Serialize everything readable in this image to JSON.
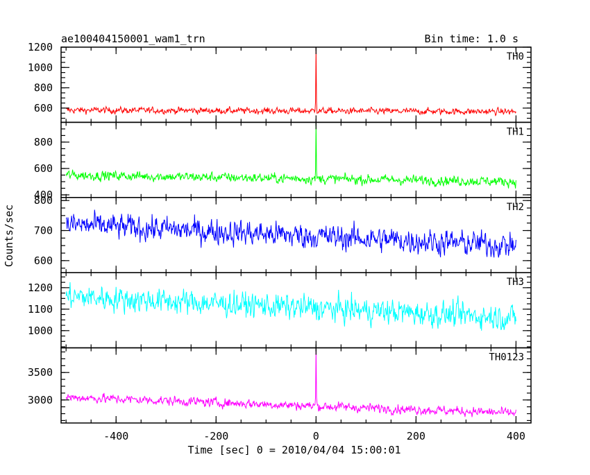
{
  "chart_data": {
    "type": "line",
    "title": "ae100404150001_wam1_trn",
    "bin_time_label": "Bin time: 1.0 s",
    "xlabel": "Time [sec] 0 = 2010/04/04 15:00:01",
    "ylabel": "Counts/sec",
    "xlim": [
      -510,
      430
    ],
    "x_ticks": [
      -400,
      -200,
      0,
      200,
      400
    ],
    "grid": false,
    "panels": [
      {
        "name": "TH0",
        "color": "#ff0000",
        "ylim": [
          460,
          1200
        ],
        "y_ticks": [
          600,
          800,
          1000,
          1200
        ],
        "series_start": [
          -500,
          580
        ],
        "series_end": [
          400,
          565
        ],
        "noise_amplitude": 30,
        "spikes": [
          {
            "x": 0,
            "y": 1200
          }
        ]
      },
      {
        "name": "TH1",
        "color": "#00ff00",
        "ylim": [
          380,
          950
        ],
        "y_ticks": [
          400,
          600,
          800
        ],
        "series_start": [
          -500,
          550
        ],
        "series_end": [
          400,
          500
        ],
        "noise_amplitude": 35,
        "spikes": [
          {
            "x": 0,
            "y": 950
          }
        ]
      },
      {
        "name": "TH2",
        "color": "#0000ff",
        "ylim": [
          560,
          810
        ],
        "y_ticks": [
          600,
          700,
          800
        ],
        "series_start": [
          -500,
          720
        ],
        "series_end": [
          400,
          650
        ],
        "noise_amplitude": 40,
        "spikes": []
      },
      {
        "name": "TH3",
        "color": "#00ffff",
        "ylim": [
          920,
          1270
        ],
        "y_ticks": [
          1000,
          1100,
          1200
        ],
        "series_start": [
          -500,
          1160
        ],
        "series_end": [
          400,
          1060
        ],
        "noise_amplitude": 55,
        "spikes": []
      },
      {
        "name": "TH0123",
        "color": "#ff00ff",
        "ylim": [
          2580,
          3950
        ],
        "y_ticks": [
          3000,
          3500
        ],
        "series_start": [
          -500,
          3050
        ],
        "series_end": [
          400,
          2760
        ],
        "noise_amplitude": 80,
        "spikes": [
          {
            "x": 0,
            "y": 3950
          }
        ]
      }
    ]
  }
}
